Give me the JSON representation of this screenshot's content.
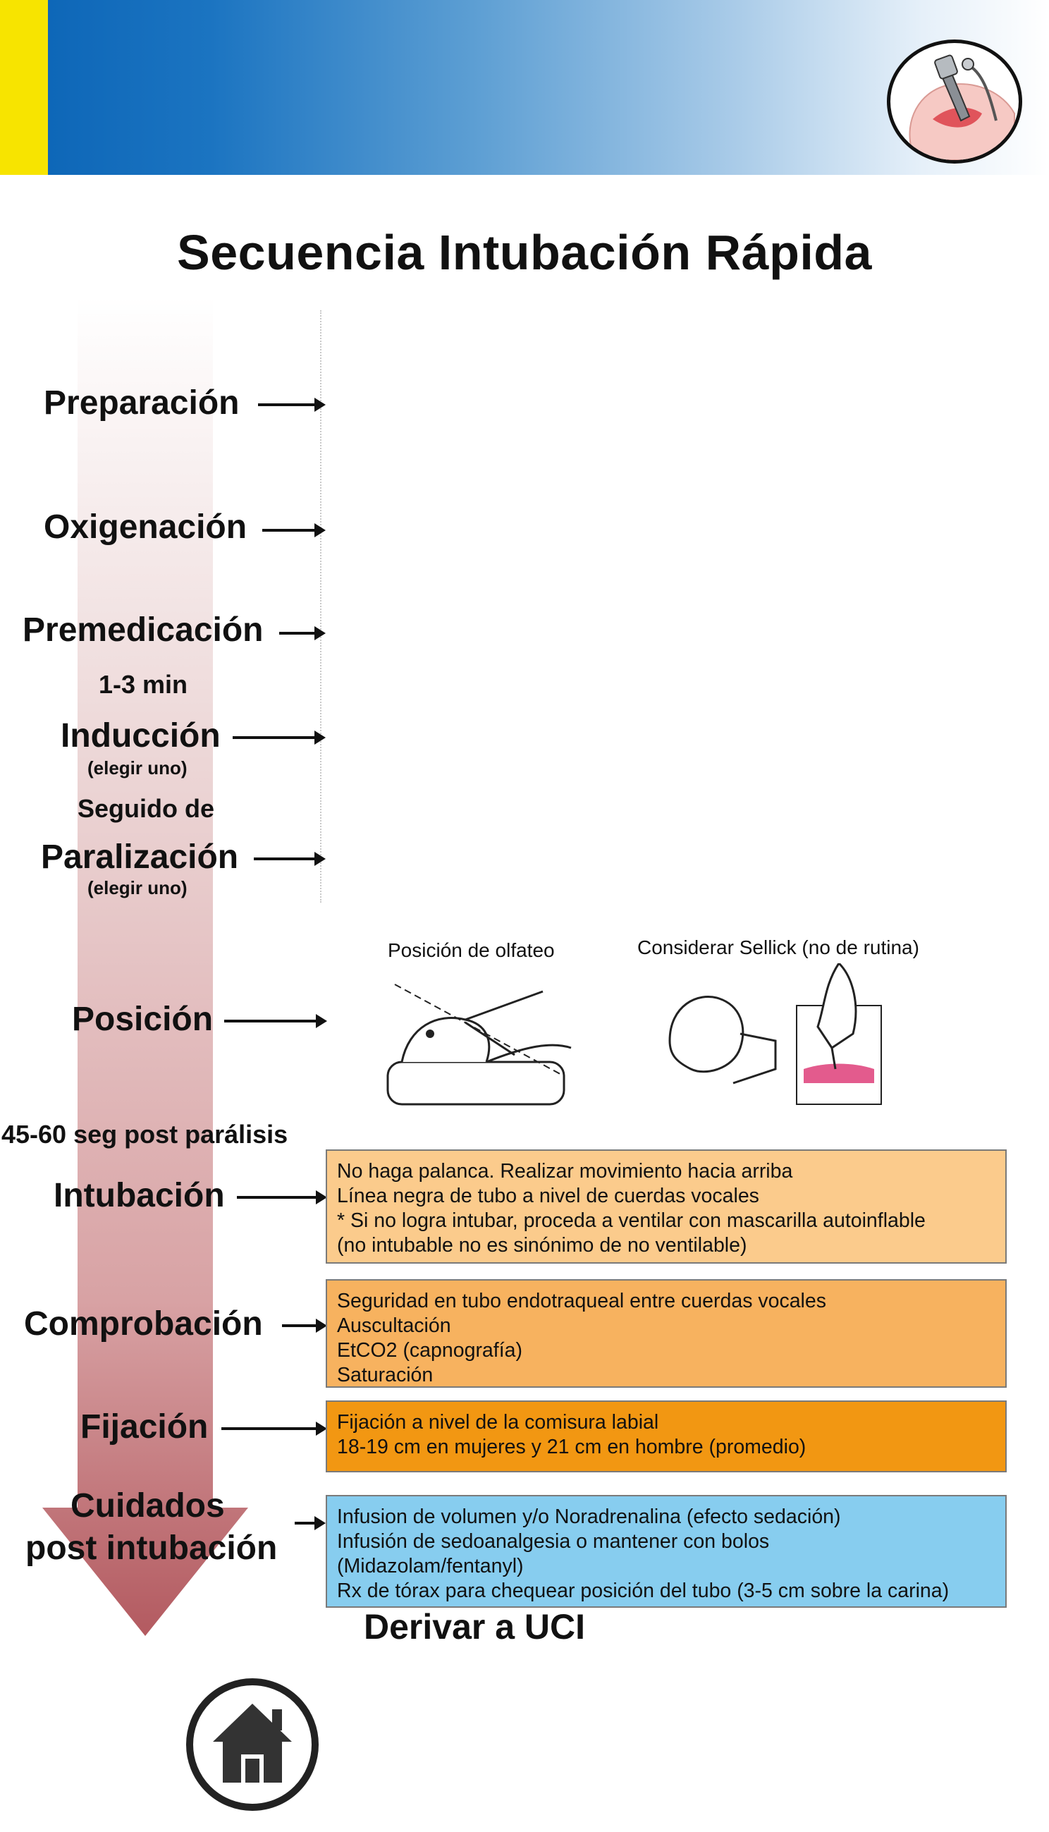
{
  "header": {
    "accent_color": "#f7e400",
    "logo_icon": "laryngoscope-intubation-icon"
  },
  "title": "Secuencia Intubación Rápida",
  "steps": {
    "preparacion": "Preparación",
    "oxigenacion": "Oxigenación",
    "premedicacion": "Premedicación",
    "tiempo_1": "1-3 min",
    "induccion": "Inducción",
    "induccion_note": "(elegir uno)",
    "seguido": "Seguido de",
    "paralizacion": "Paralización",
    "paralizacion_note": "(elegir uno)",
    "posicion": "Posición",
    "tiempo_2": "45-60 seg post parálisis",
    "intubacion": "Intubación",
    "comprobacion": "Comprobación",
    "fijacion": "Fijación",
    "cuidados_1": "Cuidados",
    "cuidados_2": "post intubación"
  },
  "posicion": {
    "olfateo_caption": "Posición de olfateo",
    "sellick_caption": "Considerar Sellick (no de rutina)"
  },
  "boxes": {
    "intubacion": {
      "color": "#fbcb8c",
      "lines": [
        "No haga palanca. Realizar movimiento hacia arriba",
        "Línea negra de tubo a nivel de cuerdas vocales",
        "* Si no logra intubar, proceda a ventilar con mascarilla autoinflable",
        "(no intubable no es sinónimo de no ventilable)"
      ]
    },
    "comprobacion": {
      "color": "#f7b25f",
      "lines": [
        "Seguridad en tubo endotraqueal entre cuerdas vocales",
        "Auscultación",
        "EtCO2 (capnografía)",
        "Saturación"
      ]
    },
    "fijacion": {
      "color": "#f29712",
      "lines": [
        "Fijación a nivel de la comisura labial",
        "18-19 cm en mujeres y 21 cm en hombre (promedio)"
      ]
    },
    "cuidados": {
      "color": "#87cdef",
      "lines": [
        "Infusion de volumen y/o Noradrenalina (efecto sedación)",
        "Infusión de sedoanalgesia o mantener con bolos",
        "(Midazolam/fentanyl)",
        "Rx de tórax para chequear posición del tubo (3-5 cm sobre la carina)"
      ]
    }
  },
  "derivar": "Derivar a UCI",
  "home_icon": "home-icon"
}
